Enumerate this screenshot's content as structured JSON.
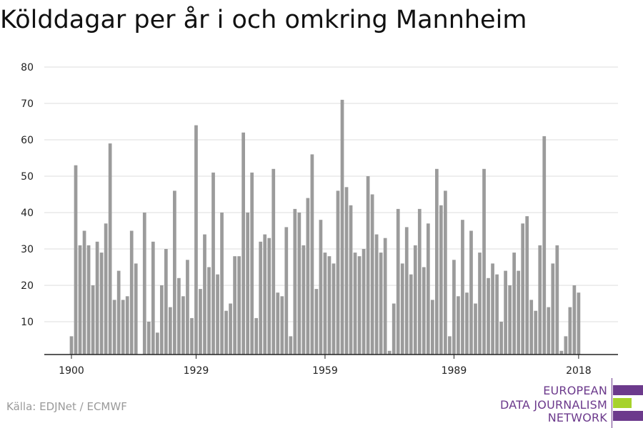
{
  "title": "Kölddagar per år i och omkring Mannheim",
  "source": "Källa: EDJNet / ECMWF",
  "logo": {
    "lines": [
      "EUROPEAN",
      "DATA JOURNALISM",
      "NETWORK"
    ],
    "colors": {
      "purple": "#6c3a8c",
      "green": "#a6d22b"
    }
  },
  "colors": {
    "bar": "#9b9b9b",
    "grid": "#dddddd",
    "axis": "#222222"
  },
  "chart_data": {
    "type": "bar",
    "title": "Kölddagar per år i och omkring Mannheim",
    "xlabel": "",
    "ylabel": "",
    "ylim": [
      1,
      80
    ],
    "yticks": [
      10,
      20,
      30,
      40,
      50,
      60,
      70,
      80
    ],
    "xticks": [
      1900,
      1929,
      1959,
      1989,
      2018
    ],
    "grid": true,
    "x": [
      1900,
      1901,
      1902,
      1903,
      1904,
      1905,
      1906,
      1907,
      1908,
      1909,
      1910,
      1911,
      1912,
      1913,
      1914,
      1915,
      1916,
      1917,
      1918,
      1919,
      1920,
      1921,
      1922,
      1923,
      1924,
      1925,
      1926,
      1927,
      1928,
      1929,
      1930,
      1931,
      1932,
      1933,
      1934,
      1935,
      1936,
      1937,
      1938,
      1939,
      1940,
      1941,
      1942,
      1943,
      1944,
      1945,
      1946,
      1947,
      1948,
      1949,
      1950,
      1951,
      1952,
      1953,
      1954,
      1955,
      1956,
      1957,
      1958,
      1959,
      1960,
      1961,
      1962,
      1963,
      1964,
      1965,
      1966,
      1967,
      1968,
      1969,
      1970,
      1971,
      1972,
      1973,
      1974,
      1975,
      1976,
      1977,
      1978,
      1979,
      1980,
      1981,
      1982,
      1983,
      1984,
      1985,
      1986,
      1987,
      1988,
      1989,
      1990,
      1991,
      1992,
      1993,
      1994,
      1995,
      1996,
      1997,
      1998,
      1999,
      2000,
      2001,
      2002,
      2003,
      2004,
      2005,
      2006,
      2007,
      2008,
      2009,
      2010,
      2011,
      2012,
      2013,
      2014,
      2015,
      2016,
      2017,
      2018
    ],
    "values": [
      6,
      53,
      31,
      35,
      31,
      20,
      32,
      29,
      37,
      59,
      16,
      24,
      16,
      17,
      35,
      26,
      0,
      40,
      10,
      32,
      7,
      20,
      30,
      14,
      46,
      22,
      17,
      27,
      11,
      64,
      19,
      34,
      25,
      51,
      23,
      40,
      13,
      15,
      28,
      28,
      62,
      40,
      51,
      11,
      32,
      34,
      33,
      52,
      18,
      17,
      36,
      6,
      41,
      40,
      31,
      44,
      56,
      19,
      38,
      29,
      28,
      26,
      46,
      71,
      47,
      42,
      29,
      28,
      30,
      50,
      45,
      34,
      29,
      33,
      2,
      15,
      41,
      26,
      36,
      23,
      31,
      41,
      25,
      37,
      16,
      52,
      42,
      46,
      6,
      27,
      17,
      38,
      18,
      35,
      15,
      29,
      52,
      22,
      26,
      23,
      10,
      24,
      20,
      29,
      24,
      37,
      39,
      16,
      13,
      31,
      61,
      14,
      26,
      31,
      2,
      6,
      14,
      20,
      18
    ]
  }
}
